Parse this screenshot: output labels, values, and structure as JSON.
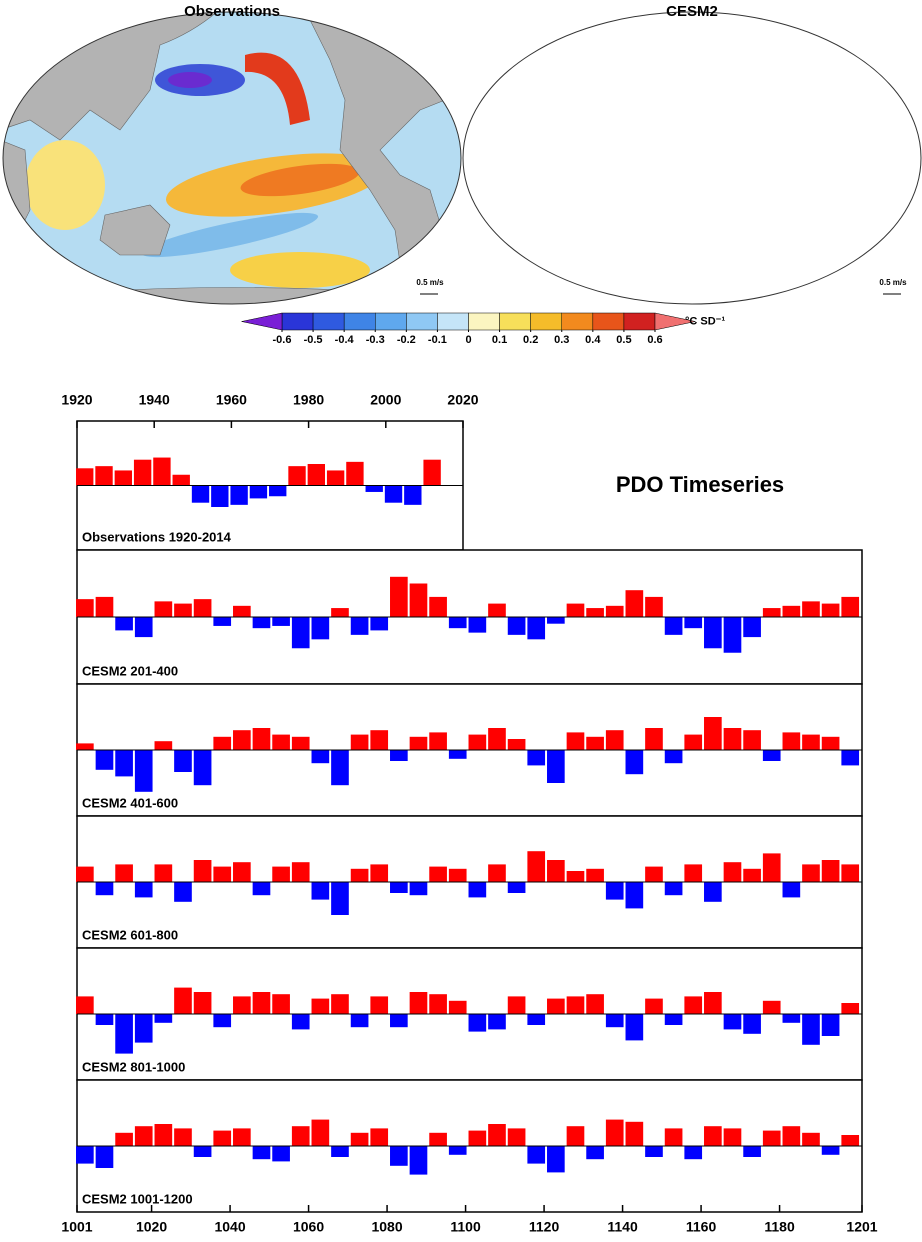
{
  "chart_data": [
    {
      "type": "map",
      "title": "Observations",
      "vector_key": "0.5 m/s"
    },
    {
      "type": "map",
      "title": "CESM2",
      "vector_key": "0.5 m/s"
    },
    {
      "type": "colorbar",
      "label": "°C SD⁻¹",
      "xlim": [
        -0.6,
        0.6
      ],
      "xticks": [
        -0.6,
        -0.5,
        -0.4,
        -0.3,
        -0.2,
        -0.1,
        0,
        0.1,
        0.2,
        0.3,
        0.4,
        0.5,
        0.6
      ],
      "colors": [
        "#7a1fd6",
        "#2a35d8",
        "#2f5ae0",
        "#3f84e6",
        "#5fa8ee",
        "#8fc8f4",
        "#c5e5f8",
        "#fbf5c0",
        "#f7df5a",
        "#f5bc2a",
        "#f28a1e",
        "#e8551a",
        "#d12120",
        "#f07070"
      ]
    },
    {
      "type": "bar",
      "title": "PDO Timeseries",
      "label": "Observations 1920-2014",
      "xlim": [
        1920,
        2020
      ],
      "xticks": [
        1920,
        1940,
        1960,
        1980,
        2000,
        2020
      ],
      "xtick_side": "top",
      "ylim": [
        -3,
        3
      ],
      "color_above": "#ff0000",
      "color_below": "#0000ff",
      "x": [
        1922,
        1927,
        1932,
        1937,
        1942,
        1947,
        1952,
        1957,
        1962,
        1967,
        1972,
        1977,
        1982,
        1987,
        1992,
        1997,
        2002,
        2007,
        2012
      ],
      "values": [
        0.8,
        0.9,
        0.7,
        1.2,
        1.3,
        0.5,
        -0.8,
        -1.0,
        -0.9,
        -0.6,
        -0.5,
        0.9,
        1.0,
        0.7,
        1.1,
        -0.3,
        -0.8,
        -0.9,
        1.2
      ]
    },
    {
      "type": "bar",
      "label": "CESM2 201-400",
      "xlim": [
        1001,
        1201
      ],
      "ylim": [
        -3,
        3
      ],
      "color_above": "#ff0000",
      "color_below": "#0000ff",
      "x": [
        1003,
        1008,
        1013,
        1018,
        1023,
        1028,
        1033,
        1038,
        1043,
        1048,
        1053,
        1058,
        1063,
        1068,
        1073,
        1078,
        1083,
        1088,
        1093,
        1098,
        1103,
        1108,
        1113,
        1118,
        1123,
        1128,
        1133,
        1138,
        1143,
        1148,
        1153,
        1158,
        1163,
        1168,
        1173,
        1178,
        1183,
        1188,
        1193,
        1198
      ],
      "values": [
        0.8,
        0.9,
        -0.6,
        -0.9,
        0.7,
        0.6,
        0.8,
        -0.4,
        0.5,
        -0.5,
        -0.4,
        -1.4,
        -1.0,
        0.4,
        -0.8,
        -0.6,
        1.8,
        1.5,
        0.9,
        -0.5,
        -0.7,
        0.6,
        -0.8,
        -1.0,
        -0.3,
        0.6,
        0.4,
        0.5,
        1.2,
        0.9,
        -0.8,
        -0.5,
        -1.4,
        -1.6,
        -0.9,
        0.4,
        0.5,
        0.7,
        0.6,
        0.9
      ]
    },
    {
      "type": "bar",
      "label": "CESM2 401-600",
      "xlim": [
        1001,
        1201
      ],
      "ylim": [
        -3,
        3
      ],
      "color_above": "#ff0000",
      "color_below": "#0000ff",
      "x": [
        1003,
        1008,
        1013,
        1018,
        1023,
        1028,
        1033,
        1038,
        1043,
        1048,
        1053,
        1058,
        1063,
        1068,
        1073,
        1078,
        1083,
        1088,
        1093,
        1098,
        1103,
        1108,
        1113,
        1118,
        1123,
        1128,
        1133,
        1138,
        1143,
        1148,
        1153,
        1158,
        1163,
        1168,
        1173,
        1178,
        1183,
        1188,
        1193,
        1198
      ],
      "values": [
        0.3,
        -0.9,
        -1.2,
        -1.9,
        0.4,
        -1.0,
        -1.6,
        0.6,
        0.9,
        1.0,
        0.7,
        0.6,
        -0.6,
        -1.6,
        0.7,
        0.9,
        -0.5,
        0.6,
        0.8,
        -0.4,
        0.7,
        1.0,
        0.5,
        -0.7,
        -1.5,
        0.8,
        0.6,
        0.9,
        -1.1,
        1.0,
        -0.6,
        0.7,
        1.5,
        1.0,
        0.9,
        -0.5,
        0.8,
        0.7,
        0.6,
        -0.7
      ]
    },
    {
      "type": "bar",
      "label": "CESM2 601-800",
      "xlim": [
        1001,
        1201
      ],
      "ylim": [
        -3,
        3
      ],
      "color_above": "#ff0000",
      "color_below": "#0000ff",
      "x": [
        1003,
        1008,
        1013,
        1018,
        1023,
        1028,
        1033,
        1038,
        1043,
        1048,
        1053,
        1058,
        1063,
        1068,
        1073,
        1078,
        1083,
        1088,
        1093,
        1098,
        1103,
        1108,
        1113,
        1118,
        1123,
        1128,
        1133,
        1138,
        1143,
        1148,
        1153,
        1158,
        1163,
        1168,
        1173,
        1178,
        1183,
        1188,
        1193,
        1198
      ],
      "values": [
        0.7,
        -0.6,
        0.8,
        -0.7,
        0.8,
        -0.9,
        1.0,
        0.7,
        0.9,
        -0.6,
        0.7,
        0.9,
        -0.8,
        -1.5,
        0.6,
        0.8,
        -0.5,
        -0.6,
        0.7,
        0.6,
        -0.7,
        0.8,
        -0.5,
        1.4,
        1.0,
        0.5,
        0.6,
        -0.8,
        -1.2,
        0.7,
        -0.6,
        0.8,
        -0.9,
        0.9,
        0.6,
        1.3,
        -0.7,
        0.8,
        1.0,
        0.8
      ]
    },
    {
      "type": "bar",
      "label": "CESM2 801-1000",
      "xlim": [
        1001,
        1201
      ],
      "ylim": [
        -3,
        3
      ],
      "color_above": "#ff0000",
      "color_below": "#0000ff",
      "x": [
        1003,
        1008,
        1013,
        1018,
        1023,
        1028,
        1033,
        1038,
        1043,
        1048,
        1053,
        1058,
        1063,
        1068,
        1073,
        1078,
        1083,
        1088,
        1093,
        1098,
        1103,
        1108,
        1113,
        1118,
        1123,
        1128,
        1133,
        1138,
        1143,
        1148,
        1153,
        1158,
        1163,
        1168,
        1173,
        1178,
        1183,
        1188,
        1193,
        1198
      ],
      "values": [
        0.8,
        -0.5,
        -1.8,
        -1.3,
        -0.4,
        1.2,
        1.0,
        -0.6,
        0.8,
        1.0,
        0.9,
        -0.7,
        0.7,
        0.9,
        -0.6,
        0.8,
        -0.6,
        1.0,
        0.9,
        0.6,
        -0.8,
        -0.7,
        0.8,
        -0.5,
        0.7,
        0.8,
        0.9,
        -0.6,
        -1.2,
        0.7,
        -0.5,
        0.8,
        1.0,
        -0.7,
        -0.9,
        0.6,
        -0.4,
        -1.4,
        -1.0,
        0.5
      ]
    },
    {
      "type": "bar",
      "label": "CESM2 1001-1200",
      "xlim": [
        1001,
        1201
      ],
      "xticks": [
        1001,
        1020,
        1040,
        1060,
        1080,
        1100,
        1120,
        1140,
        1160,
        1180,
        1201
      ],
      "xtick_side": "bottom",
      "ylim": [
        -3,
        3
      ],
      "color_above": "#ff0000",
      "color_below": "#0000ff",
      "x": [
        1003,
        1008,
        1013,
        1018,
        1023,
        1028,
        1033,
        1038,
        1043,
        1048,
        1053,
        1058,
        1063,
        1068,
        1073,
        1078,
        1083,
        1088,
        1093,
        1098,
        1103,
        1108,
        1113,
        1118,
        1123,
        1128,
        1133,
        1138,
        1143,
        1148,
        1153,
        1158,
        1163,
        1168,
        1173,
        1178,
        1183,
        1188,
        1193,
        1198
      ],
      "values": [
        -0.8,
        -1.0,
        0.6,
        0.9,
        1.0,
        0.8,
        -0.5,
        0.7,
        0.8,
        -0.6,
        -0.7,
        0.9,
        1.2,
        -0.5,
        0.6,
        0.8,
        -0.9,
        -1.3,
        0.6,
        -0.4,
        0.7,
        1.0,
        0.8,
        -0.8,
        -1.2,
        0.9,
        -0.6,
        1.2,
        1.1,
        -0.5,
        0.8,
        -0.6,
        0.9,
        0.8,
        -0.5,
        0.7,
        0.9,
        0.6,
        -0.4,
        0.5
      ]
    }
  ]
}
